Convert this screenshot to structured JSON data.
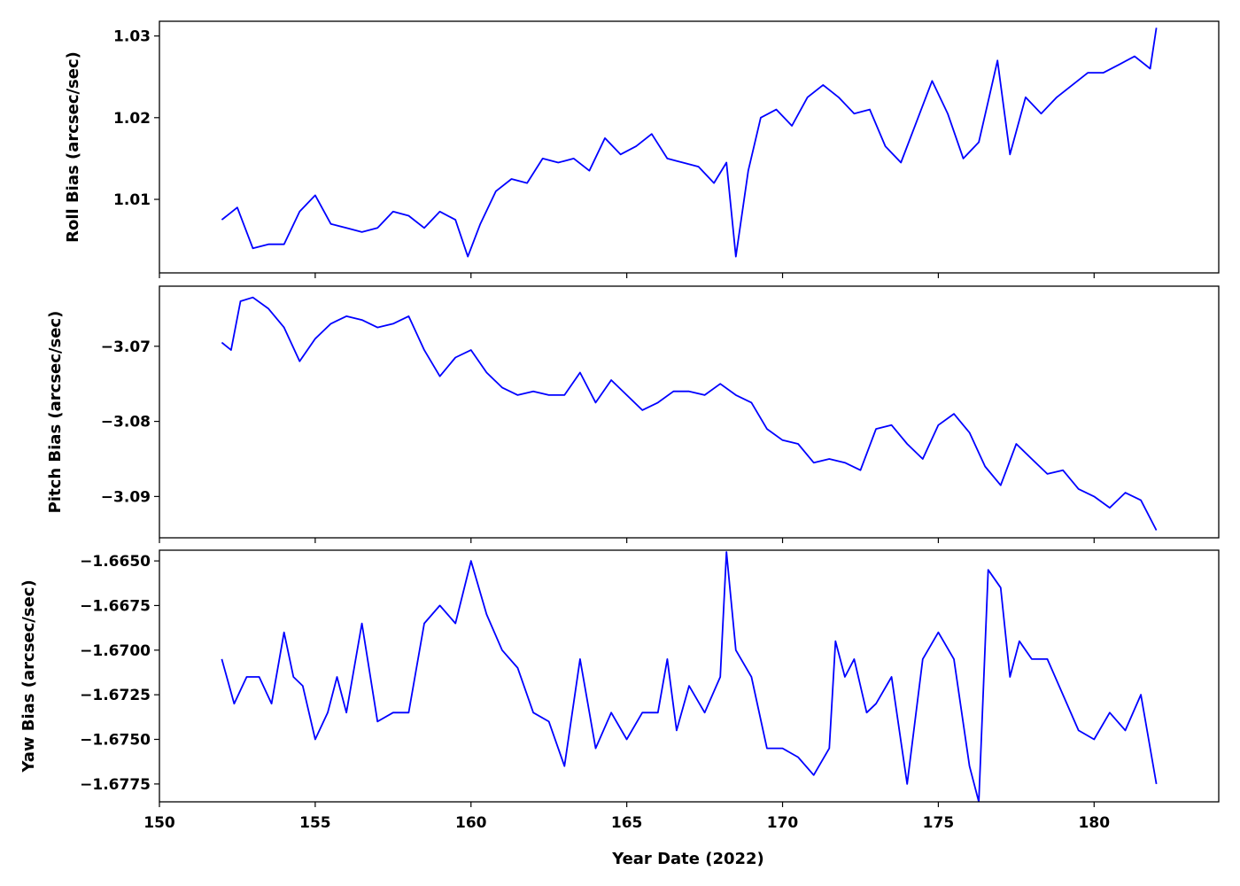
{
  "chart_data": [
    {
      "type": "line",
      "ylabel": "Roll Bias (arcsec/sec)",
      "xlabel": "",
      "xlim": [
        150,
        184
      ],
      "ylim": [
        1.001,
        1.0318
      ],
      "xticks": [
        150,
        155,
        160,
        165,
        170,
        175,
        180
      ],
      "yticks": [
        1.01,
        1.02,
        1.03
      ],
      "ytick_labels": [
        "1.01",
        "1.02",
        "1.03"
      ],
      "grid": false,
      "series": [
        {
          "color": "#0000ff",
          "x": [
            152.0,
            152.5,
            153.0,
            153.5,
            154.0,
            154.5,
            155.0,
            155.5,
            156.0,
            156.5,
            157.0,
            157.5,
            158.0,
            158.5,
            159.0,
            159.5,
            159.9,
            160.3,
            160.8,
            161.3,
            161.8,
            162.3,
            162.8,
            163.3,
            163.8,
            164.3,
            164.8,
            165.3,
            165.8,
            166.3,
            166.8,
            167.3,
            167.8,
            168.2,
            168.5,
            168.9,
            169.3,
            169.8,
            170.3,
            170.8,
            171.3,
            171.8,
            172.3,
            172.8,
            173.3,
            173.8,
            174.3,
            174.8,
            175.3,
            175.8,
            176.3,
            176.6,
            176.9,
            177.3,
            177.8,
            178.3,
            178.8,
            179.3,
            179.8,
            180.3,
            180.8,
            181.3,
            181.8,
            182.0
          ],
          "y": [
            1.0075,
            1.009,
            1.004,
            1.0045,
            1.0045,
            1.0085,
            1.0105,
            1.007,
            1.0065,
            1.006,
            1.0065,
            1.0085,
            1.008,
            1.0065,
            1.0085,
            1.0075,
            1.003,
            1.007,
            1.011,
            1.0125,
            1.012,
            1.015,
            1.0145,
            1.015,
            1.0135,
            1.0175,
            1.0155,
            1.0165,
            1.018,
            1.015,
            1.0145,
            1.014,
            1.012,
            1.0145,
            1.003,
            1.0135,
            1.02,
            1.021,
            1.019,
            1.0225,
            1.024,
            1.0225,
            1.0205,
            1.021,
            1.0165,
            1.0145,
            1.0195,
            1.0245,
            1.0205,
            1.015,
            1.017,
            1.022,
            1.027,
            1.0155,
            1.0225,
            1.0205,
            1.0225,
            1.024,
            1.0255,
            1.0255,
            1.0265,
            1.0275,
            1.026,
            1.031
          ]
        }
      ]
    },
    {
      "type": "line",
      "ylabel": "Pitch Bias (arcsec/sec)",
      "xlabel": "",
      "xlim": [
        150,
        184
      ],
      "ylim": [
        -3.0955,
        -3.062
      ],
      "xticks": [
        150,
        155,
        160,
        165,
        170,
        175,
        180
      ],
      "yticks": [
        -3.09,
        -3.08,
        -3.07
      ],
      "ytick_labels": [
        "−3.09",
        "−3.08",
        "−3.07"
      ],
      "grid": false,
      "series": [
        {
          "color": "#0000ff",
          "x": [
            152.0,
            152.3,
            152.6,
            153.0,
            153.5,
            154.0,
            154.5,
            155.0,
            155.5,
            156.0,
            156.5,
            157.0,
            157.5,
            158.0,
            158.5,
            159.0,
            159.5,
            160.0,
            160.5,
            161.0,
            161.5,
            162.0,
            162.5,
            163.0,
            163.5,
            164.0,
            164.5,
            165.0,
            165.5,
            166.0,
            166.5,
            167.0,
            167.5,
            168.0,
            168.5,
            169.0,
            169.5,
            170.0,
            170.5,
            171.0,
            171.5,
            172.0,
            172.5,
            173.0,
            173.5,
            174.0,
            174.5,
            175.0,
            175.5,
            176.0,
            176.5,
            177.0,
            177.5,
            178.0,
            178.5,
            179.0,
            179.5,
            180.0,
            180.5,
            181.0,
            181.5,
            182.0
          ],
          "y": [
            -3.0695,
            -3.0705,
            -3.064,
            -3.0635,
            -3.065,
            -3.0675,
            -3.072,
            -3.069,
            -3.067,
            -3.066,
            -3.0665,
            -3.0675,
            -3.067,
            -3.066,
            -3.0705,
            -3.074,
            -3.0715,
            -3.0705,
            -3.0735,
            -3.0755,
            -3.0765,
            -3.076,
            -3.0765,
            -3.0765,
            -3.0735,
            -3.0775,
            -3.0745,
            -3.0765,
            -3.0785,
            -3.0775,
            -3.076,
            -3.076,
            -3.0765,
            -3.075,
            -3.0765,
            -3.0775,
            -3.081,
            -3.0825,
            -3.083,
            -3.0855,
            -3.085,
            -3.0855,
            -3.0865,
            -3.081,
            -3.0805,
            -3.083,
            -3.085,
            -3.0805,
            -3.079,
            -3.0815,
            -3.086,
            -3.0885,
            -3.083,
            -3.085,
            -3.087,
            -3.0865,
            -3.089,
            -3.09,
            -3.0915,
            -3.0895,
            -3.0905,
            -3.0945
          ]
        }
      ]
    },
    {
      "type": "line",
      "ylabel": "Yaw Bias (arcsec/sec)",
      "xlabel": "Year Date (2022)",
      "xlim": [
        150,
        184
      ],
      "ylim": [
        -1.6785,
        -1.6644
      ],
      "xticks": [
        150,
        155,
        160,
        165,
        170,
        175,
        180
      ],
      "xtick_labels": [
        "150",
        "155",
        "160",
        "165",
        "170",
        "175",
        "180"
      ],
      "yticks": [
        -1.6775,
        -1.675,
        -1.6725,
        -1.67,
        -1.6675,
        -1.665
      ],
      "ytick_labels": [
        "−1.6775",
        "−1.6750",
        "−1.6725",
        "−1.6700",
        "−1.6675",
        "−1.6650"
      ],
      "grid": false,
      "series": [
        {
          "color": "#0000ff",
          "x": [
            152.0,
            152.4,
            152.8,
            153.2,
            153.6,
            154.0,
            154.3,
            154.6,
            155.0,
            155.4,
            155.7,
            156.0,
            156.5,
            157.0,
            157.5,
            158.0,
            158.5,
            159.0,
            159.5,
            160.0,
            160.5,
            161.0,
            161.5,
            162.0,
            162.5,
            163.0,
            163.5,
            164.0,
            164.5,
            165.0,
            165.5,
            166.0,
            166.3,
            166.6,
            167.0,
            167.5,
            168.0,
            168.2,
            168.5,
            169.0,
            169.5,
            170.0,
            170.5,
            171.0,
            171.5,
            171.7,
            172.0,
            172.3,
            172.7,
            173.0,
            173.5,
            174.0,
            174.5,
            175.0,
            175.5,
            176.0,
            176.3,
            176.6,
            177.0,
            177.3,
            177.6,
            178.0,
            178.5,
            179.0,
            179.5,
            180.0,
            180.5,
            181.0,
            181.5,
            182.0
          ],
          "y": [
            -1.6705,
            -1.673,
            -1.6715,
            -1.6715,
            -1.673,
            -1.669,
            -1.6715,
            -1.672,
            -1.675,
            -1.6735,
            -1.6715,
            -1.6735,
            -1.6685,
            -1.674,
            -1.6735,
            -1.6735,
            -1.6685,
            -1.6675,
            -1.6685,
            -1.665,
            -1.668,
            -1.67,
            -1.671,
            -1.6735,
            -1.674,
            -1.6765,
            -1.6705,
            -1.6755,
            -1.6735,
            -1.675,
            -1.6735,
            -1.6735,
            -1.6705,
            -1.6745,
            -1.672,
            -1.6735,
            -1.6715,
            -1.6645,
            -1.67,
            -1.6715,
            -1.6755,
            -1.6755,
            -1.676,
            -1.677,
            -1.6755,
            -1.6695,
            -1.6715,
            -1.6705,
            -1.6735,
            -1.673,
            -1.6715,
            -1.6775,
            -1.6705,
            -1.669,
            -1.6705,
            -1.6765,
            -1.6785,
            -1.6655,
            -1.6665,
            -1.6715,
            -1.6695,
            -1.6705,
            -1.6705,
            -1.6725,
            -1.6745,
            -1.675,
            -1.6735,
            -1.6745,
            -1.6725,
            -1.6775
          ]
        }
      ]
    }
  ]
}
